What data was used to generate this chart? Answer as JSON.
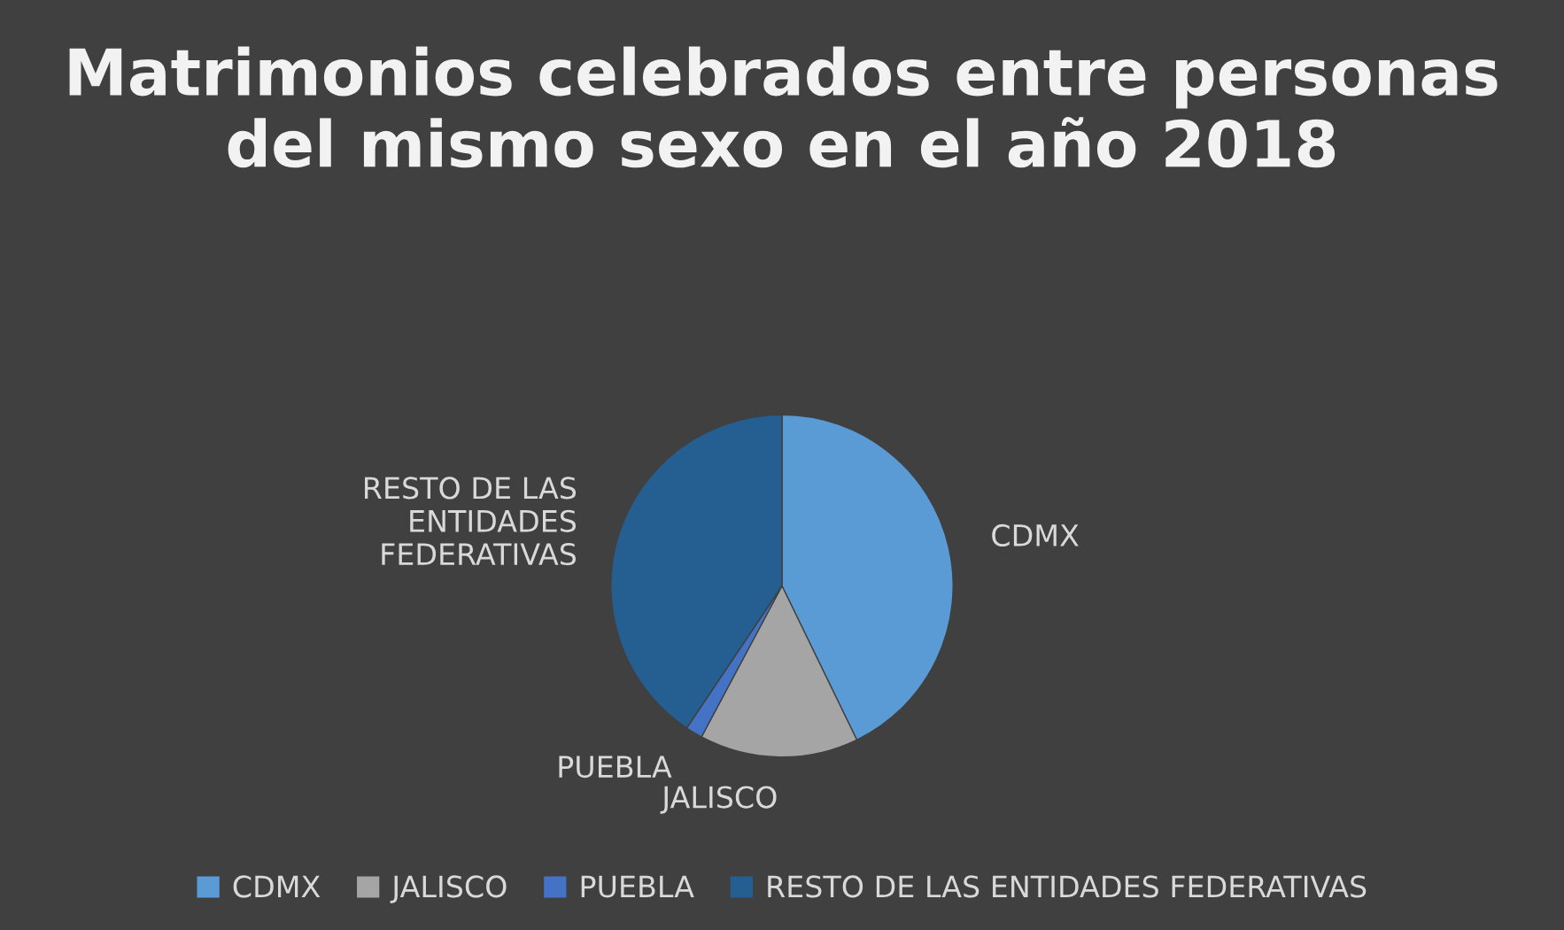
{
  "chart_data": {
    "type": "pie",
    "title": "Matrimonios celebrados entre personas del mismo sexo en el año 2018",
    "categories": [
      "CDMX",
      "JALISCO",
      "PUEBLA",
      "RESTO DE LAS ENTIDADES FEDERATIVAS"
    ],
    "values": [
      42.8,
      15.0,
      1.6,
      40.6
    ],
    "colors": [
      "#5b9bd5",
      "#a5a5a5",
      "#4472c4",
      "#255e91"
    ],
    "legend": "bottom"
  }
}
